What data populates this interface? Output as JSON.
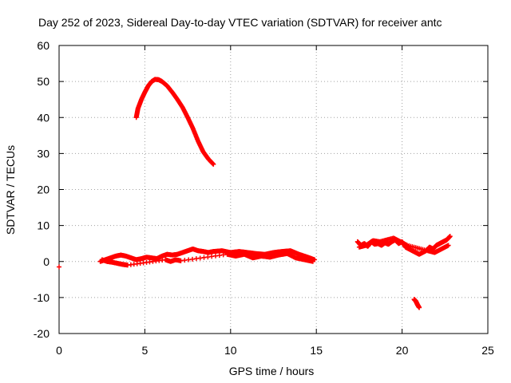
{
  "chart_data": {
    "type": "scatter",
    "title": "Day 252 of 2023, Sidereal Day-to-day VTEC variation (SDTVAR) for receiver antc",
    "xlabel": "GPS time / hours",
    "ylabel": "SDTVAR / TECUs",
    "xlim": [
      0,
      25
    ],
    "ylim": [
      -20,
      60
    ],
    "xticks": [
      0,
      5,
      10,
      15,
      20,
      25
    ],
    "yticks": [
      -20,
      -10,
      0,
      10,
      20,
      30,
      40,
      50,
      60
    ],
    "xtick_labels": [
      "0",
      "5",
      "10",
      "15",
      "20",
      "25"
    ],
    "ytick_labels": [
      "-20",
      "-10",
      "0",
      "10",
      "20",
      "30",
      "40",
      "50",
      "60"
    ],
    "grid": true,
    "marker": "plus",
    "color": "#ff0000",
    "series": [
      {
        "name": "arc-high",
        "x": [
          4.5,
          4.6,
          4.8,
          5.0,
          5.2,
          5.4,
          5.6,
          5.8,
          6.0,
          6.3,
          6.6,
          6.9,
          7.2,
          7.5,
          7.8,
          8.1,
          8.4,
          8.7,
          9.0
        ],
        "y": [
          40.0,
          42.5,
          45.0,
          47.0,
          48.8,
          50.0,
          50.6,
          50.5,
          50.0,
          48.8,
          47.0,
          45.0,
          42.8,
          40.0,
          37.0,
          33.5,
          30.5,
          28.5,
          27.0
        ]
      },
      {
        "name": "low-band-1",
        "x": [
          2.4,
          2.7,
          3.0,
          3.3,
          3.6,
          3.9,
          4.2,
          4.5,
          4.8,
          5.1,
          5.4,
          5.7,
          6.0,
          6.3,
          6.6,
          6.9,
          7.2,
          7.5,
          7.8,
          8.1,
          8.4,
          8.7,
          9.0,
          9.5,
          10.0,
          10.5,
          11.0,
          11.5,
          12.0,
          12.5,
          13.0,
          13.5,
          14.0,
          14.5,
          14.9
        ],
        "y": [
          0.0,
          0.5,
          1.0,
          1.5,
          1.8,
          1.5,
          1.0,
          0.5,
          0.8,
          1.2,
          1.0,
          0.8,
          1.5,
          2.0,
          1.8,
          2.0,
          2.5,
          3.0,
          3.5,
          3.0,
          2.8,
          2.5,
          2.8,
          3.0,
          2.5,
          2.8,
          2.5,
          2.2,
          2.0,
          2.5,
          2.8,
          3.0,
          2.0,
          1.2,
          0.5
        ]
      },
      {
        "name": "low-band-2",
        "x": [
          2.5,
          2.8,
          3.1,
          3.4,
          3.7,
          4.0,
          6.2,
          6.5,
          6.8,
          7.1,
          9.8,
          10.3,
          10.8,
          11.3,
          11.8,
          12.3,
          12.8,
          13.3,
          13.8,
          14.3,
          14.8
        ],
        "y": [
          0.5,
          0.0,
          -0.2,
          -0.5,
          -0.8,
          -1.0,
          0.5,
          0.0,
          0.5,
          0.2,
          2.0,
          1.5,
          2.0,
          1.0,
          1.5,
          1.2,
          1.8,
          2.2,
          1.0,
          0.5,
          0.0
        ]
      },
      {
        "name": "outlier",
        "x": [
          0.0
        ],
        "y": [
          -1.5
        ]
      },
      {
        "name": "late-band",
        "x": [
          17.4,
          17.6,
          17.8,
          18.0,
          18.2,
          18.4,
          18.6,
          18.8,
          19.0,
          19.2,
          19.4,
          19.6,
          19.8,
          20.0,
          20.2,
          20.4,
          20.6,
          20.8,
          21.0,
          21.4,
          21.6,
          21.8,
          22.0,
          22.2,
          22.4,
          22.6,
          22.8
        ],
        "y": [
          5.5,
          4.5,
          5.0,
          4.2,
          5.5,
          4.8,
          5.0,
          4.5,
          5.2,
          4.8,
          5.5,
          6.0,
          5.0,
          5.5,
          4.0,
          3.5,
          3.0,
          2.5,
          2.0,
          3.0,
          4.0,
          3.5,
          4.5,
          5.0,
          5.5,
          6.0,
          7.0
        ]
      },
      {
        "name": "late-band-2",
        "x": [
          17.5,
          17.9,
          18.3,
          18.7,
          19.5,
          19.9,
          20.3,
          21.5,
          21.9,
          22.3,
          22.7
        ],
        "y": [
          4.0,
          4.5,
          5.8,
          5.5,
          6.5,
          5.5,
          4.5,
          3.0,
          2.5,
          3.5,
          4.5
        ]
      },
      {
        "name": "late-dip",
        "x": [
          20.7,
          20.8,
          20.9,
          21.0
        ],
        "y": [
          -10.5,
          -11.0,
          -12.0,
          -12.8
        ]
      }
    ]
  }
}
